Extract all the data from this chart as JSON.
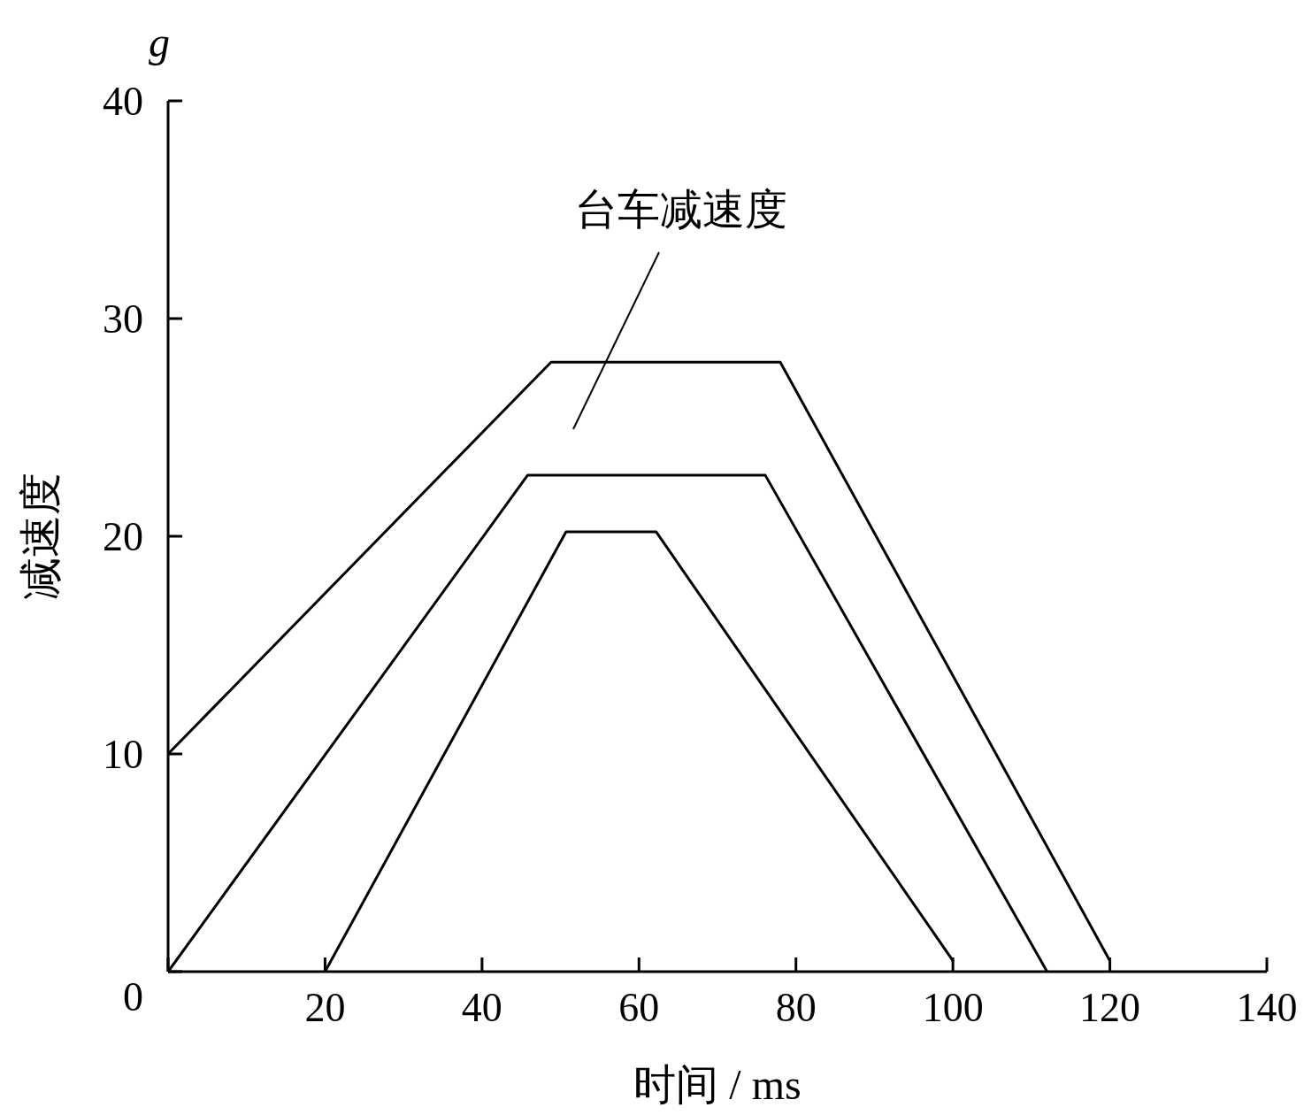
{
  "chart_data": {
    "type": "line",
    "xlabel": "时间 / ms",
    "ylabel": "减速度",
    "xlim": [
      0,
      140
    ],
    "ylim": [
      0,
      40
    ],
    "xticks": [
      {
        "value": 0,
        "label": null
      },
      20,
      40,
      60,
      80,
      100,
      120,
      140
    ],
    "yticks": [
      0,
      10,
      20,
      30,
      40
    ],
    "series": [
      {
        "color": "#000000",
        "x": [
          0,
          48.8,
          78,
          120
        ],
        "values": [
          10,
          28,
          28,
          0.5
        ]
      },
      {
        "color": "#000000",
        "x": [
          0,
          45.8,
          76.1,
          112
        ],
        "values": [
          0,
          22.8,
          22.8,
          0
        ]
      },
      {
        "color": "#000000",
        "x": [
          20,
          50.7,
          62.2,
          100
        ],
        "values": [
          0,
          20.2,
          20.2,
          0.5
        ]
      }
    ],
    "annotations": [
      "台车减速度",
      "g"
    ]
  }
}
